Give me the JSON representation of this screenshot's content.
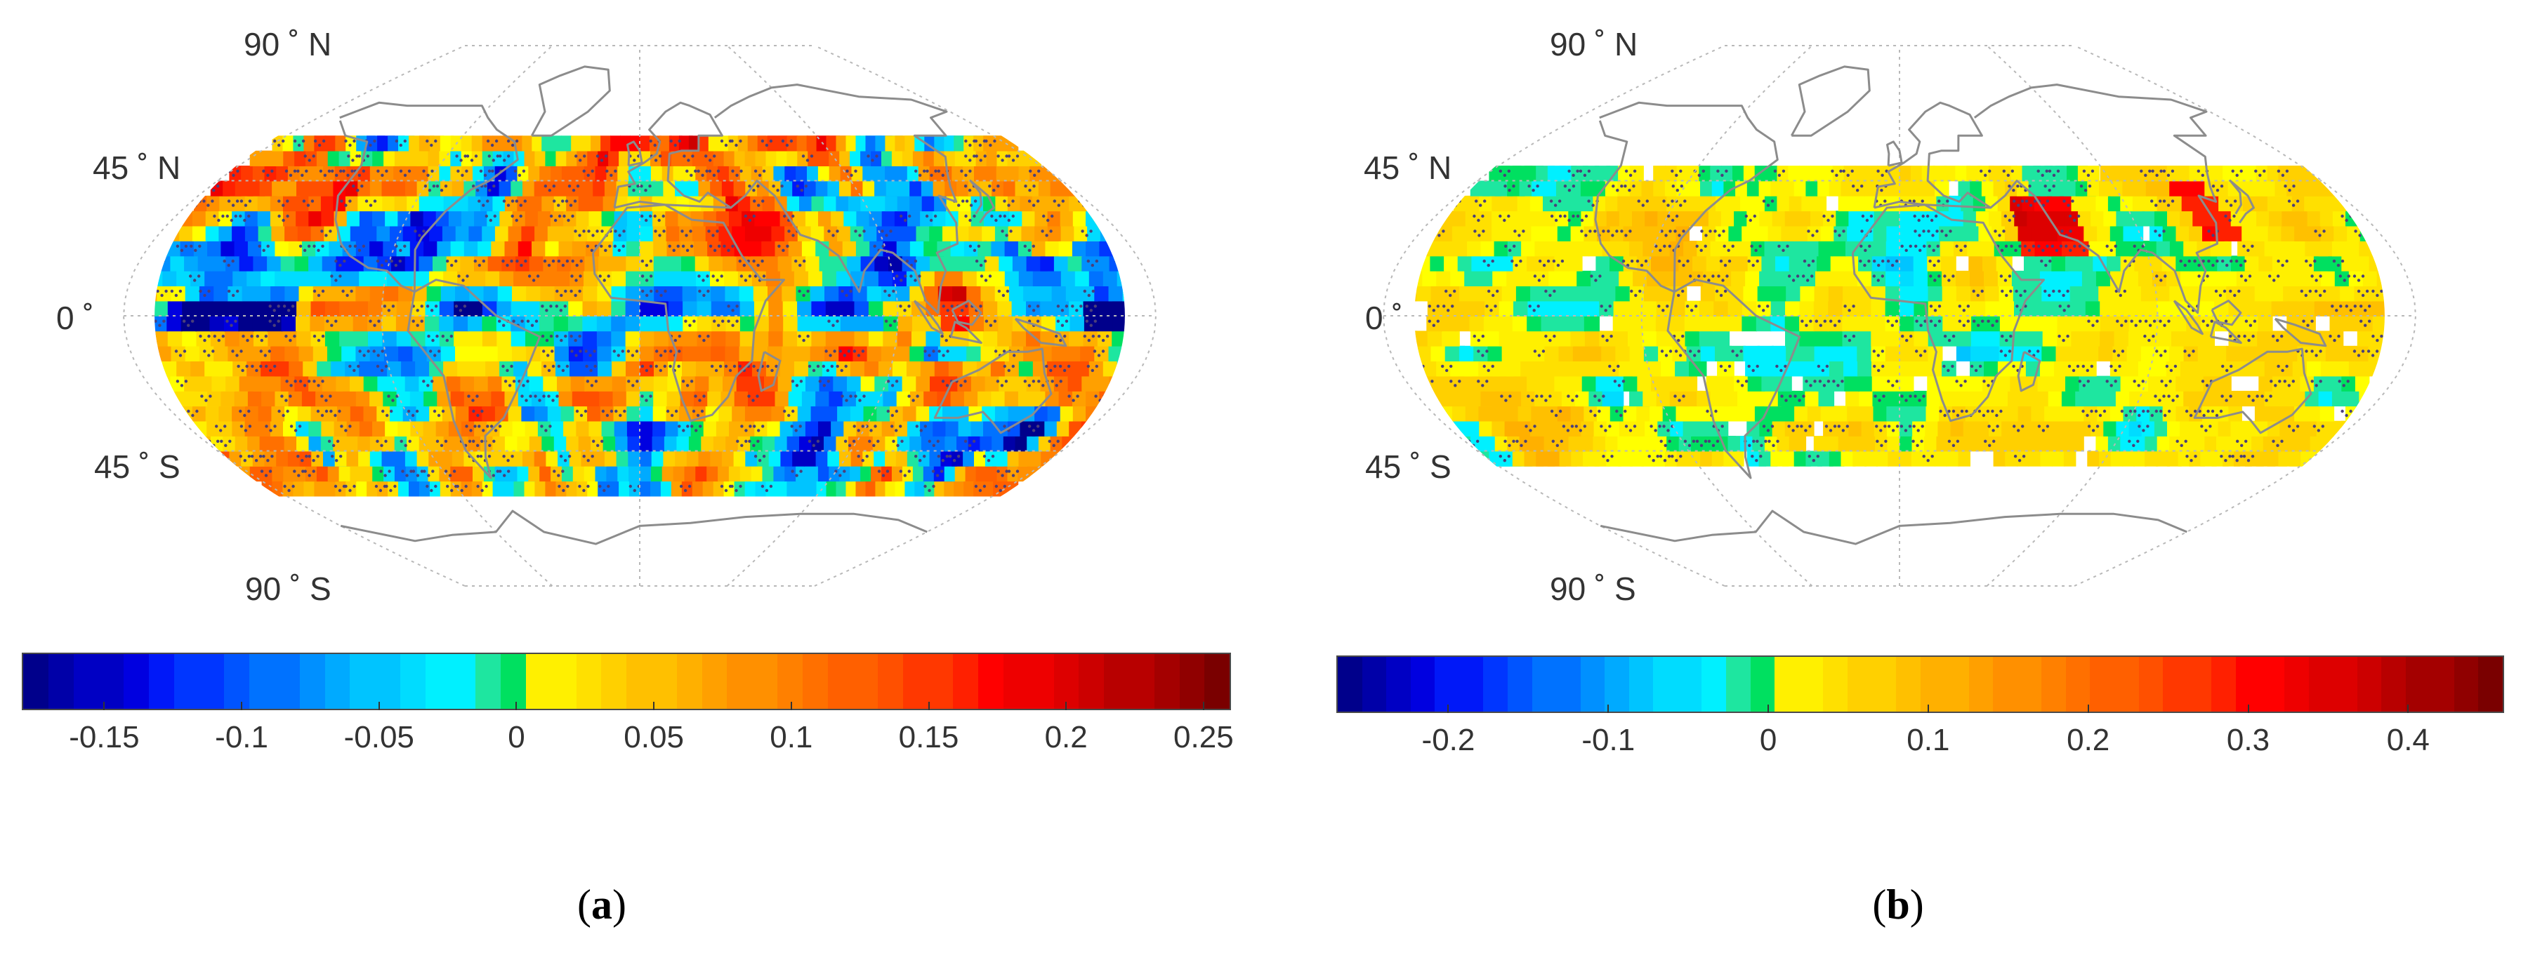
{
  "panels": [
    {
      "id": "a",
      "caption_open": "(",
      "caption_letter": "a",
      "caption_close": ")",
      "lat_labels": [
        "90 ˚ N",
        "45 ˚ N",
        "0 ˚",
        "45 ˚ S",
        "90 ˚ S"
      ],
      "data_lat_extent": [
        -60,
        60
      ],
      "colorbar": {
        "min": -0.18,
        "max": 0.26,
        "ticks": [
          -0.15,
          -0.1,
          -0.05,
          0,
          0.05,
          0.1,
          0.15,
          0.2,
          0.25
        ],
        "tick_labels": [
          "-0.15",
          "-0.1",
          "-0.05",
          "0",
          "0.05",
          "0.1",
          "0.15",
          "0.2",
          "0.25"
        ]
      }
    },
    {
      "id": "b",
      "caption_open": "(",
      "caption_letter": "b",
      "caption_close": ")",
      "lat_labels": [
        "90 ˚ N",
        "45 ˚ N",
        "0 ˚",
        "45 ˚ S",
        "90 ˚ S"
      ],
      "data_lat_extent": [
        -50,
        50
      ],
      "colorbar": {
        "min": -0.27,
        "max": 0.46,
        "ticks": [
          -0.2,
          -0.1,
          0,
          0.1,
          0.2,
          0.3,
          0.4
        ],
        "tick_labels": [
          "-0.2",
          "-0.1",
          "0",
          "0.1",
          "0.2",
          "0.3",
          "0.4"
        ]
      }
    }
  ],
  "colors": {
    "graticule": "#b8b8b8",
    "coastline": "#8c8c8c",
    "stipple": "#4a3f7a"
  }
}
